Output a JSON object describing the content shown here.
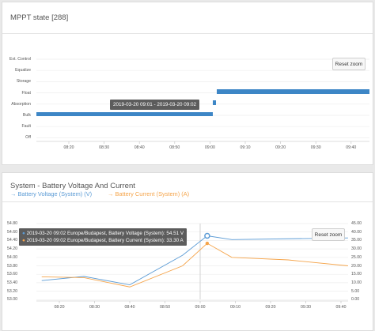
{
  "mppt": {
    "title": "MPPT state [288]",
    "reset_label": "Reset zoom",
    "tooltip": "2019-03-20 09:01 - 2019-03-20 09:02",
    "states": [
      "Ext. Control",
      "Equalize",
      "Storage",
      "Float",
      "Absorption",
      "Bulk",
      "Fault",
      "Off"
    ],
    "x_ticks": [
      "08:20",
      "08:30",
      "08:40",
      "08:50",
      "09:00",
      "09:10",
      "09:20",
      "09:30",
      "09:40"
    ],
    "bar_color": "#3d86c6"
  },
  "battery": {
    "title": "System - Battery Voltage And Current",
    "legend_voltage": "Battery Voltage (System) (V)",
    "legend_current": "Battery Current (System) (A)",
    "reset_label": "Reset zoom",
    "tooltip_voltage": "2019-03-20 09:02 Europe/Budapest, Battery Voltage (System): 54.51 V",
    "tooltip_current": "2019-03-20 09:02 Europe/Budapest, Battery Current (System): 33.30 A",
    "voltage_color": "#5b9bd5",
    "current_color": "#f5a44a",
    "y_left_ticks": [
      "54.80",
      "54.60",
      "54.40",
      "54.20",
      "54.00",
      "53.80",
      "53.60",
      "53.40",
      "53.20",
      "53.00"
    ],
    "y_right_ticks": [
      "45.00",
      "40.00",
      "35.00",
      "30.00",
      "25.00",
      "20.00",
      "15.00",
      "10.00",
      "5.00",
      "0.00"
    ],
    "x_ticks": [
      "08:20",
      "08:30",
      "08:40",
      "08:50",
      "09:00",
      "09:10",
      "09:20",
      "09:30",
      "09:40"
    ]
  },
  "chart_data": [
    {
      "type": "line",
      "x": [
        "08:15",
        "08:27",
        "08:40",
        "08:55",
        "09:02",
        "09:09",
        "09:25",
        "09:42"
      ],
      "series": [
        {
          "name": "Battery Voltage (System) (V)",
          "axis": "left",
          "values": [
            53.45,
            53.55,
            53.35,
            54.05,
            54.51,
            54.42,
            54.44,
            54.46
          ]
        },
        {
          "name": "Battery Current (System) (A)",
          "axis": "right",
          "values": [
            13.5,
            13.0,
            7.5,
            20.0,
            33.3,
            25.0,
            23.5,
            20.0
          ]
        }
      ],
      "ylim_left": [
        53.0,
        54.8
      ],
      "ylim_right": [
        0,
        45
      ],
      "grid": true
    }
  ]
}
